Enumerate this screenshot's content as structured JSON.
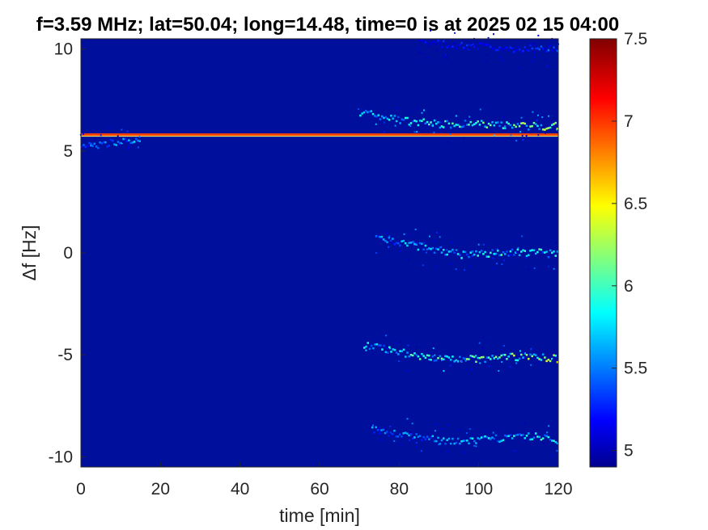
{
  "chart_data": {
    "type": "heatmap",
    "title": "f=3.59 MHz;  lat=50.04; long=14.48, time=0 is at 2025 02 15 04:00",
    "xlabel": "time [min]",
    "ylabel": "Δf [Hz]",
    "xlim": [
      0,
      120
    ],
    "ylim": [
      -10.5,
      10.5
    ],
    "xticks": [
      0,
      20,
      40,
      60,
      80,
      100,
      120
    ],
    "yticks": [
      10,
      5,
      0,
      -5,
      -10
    ],
    "colorbar": {
      "colormap": "jet",
      "range": [
        4.9,
        7.5
      ],
      "ticks": [
        5,
        5.5,
        6,
        6.5,
        7,
        7.5
      ]
    },
    "grid": false,
    "features": [
      {
        "name": "constant line",
        "x": [
          0,
          120
        ],
        "y": 5.8,
        "value": 7.0
      },
      {
        "name": "trace A",
        "points": [
          [
            70,
            6.9
          ],
          [
            80,
            6.5
          ],
          [
            90,
            6.3
          ],
          [
            100,
            6.3
          ],
          [
            110,
            6.2
          ],
          [
            120,
            6.2
          ]
        ],
        "peak": 6.6
      },
      {
        "name": "trace B",
        "points": [
          [
            74,
            0.7
          ],
          [
            85,
            0.3
          ],
          [
            95,
            -0.1
          ],
          [
            105,
            0.0
          ],
          [
            115,
            0.0
          ],
          [
            120,
            -0.1
          ]
        ],
        "peak": 6.4
      },
      {
        "name": "trace C",
        "points": [
          [
            71,
            -4.5
          ],
          [
            80,
            -4.9
          ],
          [
            90,
            -5.2
          ],
          [
            100,
            -5.2
          ],
          [
            110,
            -5.1
          ],
          [
            120,
            -5.2
          ]
        ],
        "peak": 6.7
      },
      {
        "name": "trace D",
        "points": [
          [
            73,
            -8.7
          ],
          [
            85,
            -9.1
          ],
          [
            95,
            -9.3
          ],
          [
            105,
            -9.1
          ],
          [
            115,
            -9.0
          ],
          [
            120,
            -9.3
          ]
        ],
        "peak": 6.3
      },
      {
        "name": "early patch",
        "points": [
          [
            0,
            5.2
          ],
          [
            5,
            5.3
          ],
          [
            10,
            5.5
          ],
          [
            15,
            5.4
          ]
        ],
        "peak": 6.0
      },
      {
        "name": "top trace",
        "points": [
          [
            85,
            10.3
          ],
          [
            100,
            10.1
          ],
          [
            110,
            10.0
          ],
          [
            120,
            10.0
          ]
        ],
        "peak": 5.6
      }
    ]
  }
}
